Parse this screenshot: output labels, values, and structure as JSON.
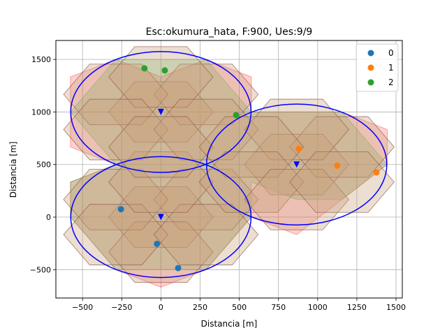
{
  "chart_data": {
    "type": "scatter",
    "title": "Esc:okumura_hata, F:900, Ues:9/9",
    "xlabel": "Distancia [m]",
    "ylabel": "Distancia [m]",
    "xlim": [
      -670,
      1540
    ],
    "ylim": [
      -770,
      1680
    ],
    "xticks": [
      -500,
      -250,
      0,
      250,
      500,
      750,
      1000,
      1250,
      1500
    ],
    "yticks": [
      -500,
      0,
      500,
      1000,
      1500
    ],
    "xtick_labels": [
      "−500",
      "−250",
      "0",
      "250",
      "500",
      "750",
      "1000",
      "1250",
      "1500"
    ],
    "ytick_labels": [
      "−500",
      "0",
      "500",
      "1000",
      "1500"
    ],
    "grid": true,
    "legend_position": "top-right",
    "series": [
      {
        "name": "0",
        "color": "#1f77b4",
        "points": [
          [
            -255,
            75
          ],
          [
            -25,
            -255
          ],
          [
            110,
            -485
          ]
        ]
      },
      {
        "name": "1",
        "color": "#ff7f0e",
        "points": [
          [
            880,
            650
          ],
          [
            1125,
            490
          ],
          [
            1375,
            425
          ]
        ]
      },
      {
        "name": "2",
        "color": "#2ca02c",
        "points": [
          [
            -105,
            1415
          ],
          [
            25,
            1395
          ],
          [
            480,
            970
          ]
        ]
      }
    ],
    "base_stations": {
      "color": "#0000ff",
      "marker": "triangle-down",
      "points": [
        [
          0,
          0
        ],
        [
          0,
          1000
        ],
        [
          866,
          500
        ]
      ]
    },
    "coverage_circles": {
      "color": "#0000ff",
      "rx": 575,
      "ry": 575,
      "centers": [
        [
          0,
          0
        ],
        [
          0,
          1000
        ],
        [
          866,
          500
        ]
      ]
    },
    "hexagons": {
      "edge_color": "#8b5a4a",
      "size": 333,
      "centers": [
        [
          0,
          0
        ],
        [
          288,
          167
        ],
        [
          0,
          -333
        ],
        [
          -288,
          167
        ],
        [
          -288,
          -167
        ],
        [
          288,
          -167
        ],
        [
          0,
          333
        ],
        [
          0,
          1000
        ],
        [
          288,
          1167
        ],
        [
          -288,
          1167
        ],
        [
          0,
          1333
        ],
        [
          -288,
          833
        ],
        [
          288,
          833
        ],
        [
          0,
          667
        ],
        [
          866,
          500
        ],
        [
          1155,
          667
        ],
        [
          866,
          833
        ],
        [
          577,
          667
        ],
        [
          577,
          333
        ],
        [
          866,
          167
        ],
        [
          1155,
          333
        ]
      ]
    },
    "regions": [
      {
        "name": "region-pink",
        "color": "#ff0000",
        "opacity": 0.18,
        "polygon": [
          [
            -577,
            333
          ],
          [
            -288,
            500
          ],
          [
            -577,
            667
          ],
          [
            -577,
            1333
          ],
          [
            -288,
            1500
          ],
          [
            0,
            1333
          ],
          [
            288,
            1500
          ],
          [
            577,
            1333
          ],
          [
            577,
            1000
          ],
          [
            1155,
            1000
          ],
          [
            1444,
            833
          ],
          [
            1444,
            500
          ],
          [
            1155,
            167
          ],
          [
            866,
            -167
          ],
          [
            577,
            0
          ],
          [
            288,
            -500
          ],
          [
            0,
            -667
          ],
          [
            -288,
            -500
          ],
          [
            -577,
            0
          ]
        ]
      },
      {
        "name": "region-green",
        "color": "#2ca02c",
        "opacity": 0.22,
        "polygon": [
          [
            -577,
            0
          ],
          [
            -288,
            -500
          ],
          [
            288,
            -500
          ],
          [
            577,
            0
          ],
          [
            577,
            333
          ],
          [
            866,
            167
          ],
          [
            1155,
            167
          ],
          [
            1444,
            500
          ],
          [
            1155,
            1000
          ],
          [
            577,
            1000
          ],
          [
            288,
            1500
          ],
          [
            -288,
            1500
          ],
          [
            -577,
            1000
          ],
          [
            -288,
            500
          ],
          [
            -577,
            333
          ]
        ]
      }
    ]
  }
}
